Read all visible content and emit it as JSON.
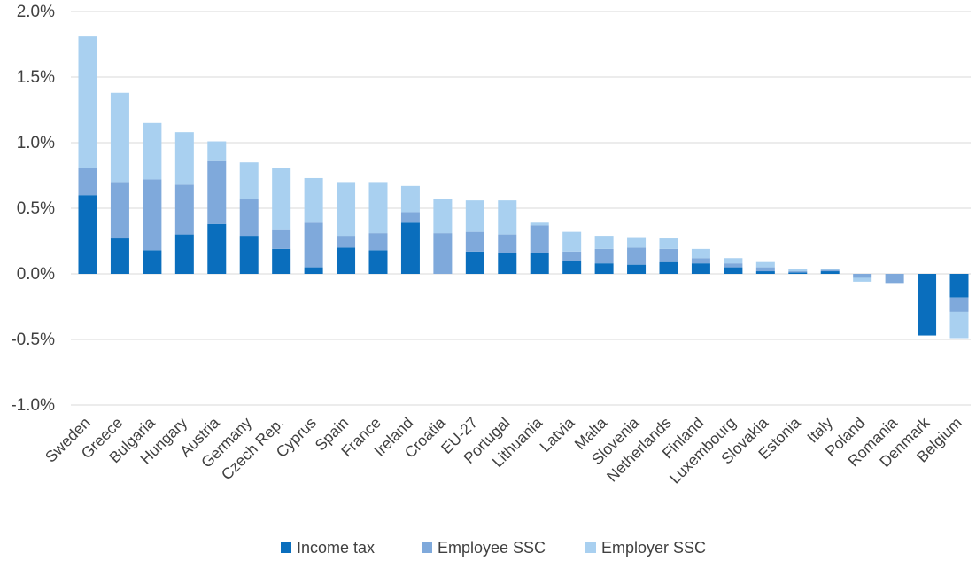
{
  "chart_data": {
    "type": "bar",
    "stacked": true,
    "title": "",
    "xlabel": "",
    "ylabel": "",
    "ylim": [
      -1.0,
      2.0
    ],
    "yticks": [
      -1.0,
      -0.5,
      0.0,
      0.5,
      1.0,
      1.5,
      2.0
    ],
    "ytick_labels": [
      "-1.0%",
      "-0.5%",
      "0.0%",
      "0.5%",
      "1.0%",
      "1.5%",
      "2.0%"
    ],
    "grid": "horizontal",
    "legend_position": "bottom",
    "categories": [
      "Sweden",
      "Greece",
      "Bulgaria",
      "Hungary",
      "Austria",
      "Germany",
      "Czech Rep.",
      "Cyprus",
      "Spain",
      "France",
      "Ireland",
      "Croatia",
      "EU-27",
      "Portugal",
      "Lithuania",
      "Latvia",
      "Malta",
      "Slovenia",
      "Netherlands",
      "Finland",
      "Luxembourg",
      "Slovakia",
      "Estonia",
      "Italy",
      "Poland",
      "Romania",
      "Denmark",
      "Belgium"
    ],
    "series": [
      {
        "name": "Income tax",
        "color": "#0A6EBD",
        "values": [
          0.6,
          0.27,
          0.18,
          0.3,
          0.38,
          0.29,
          0.19,
          0.05,
          0.2,
          0.18,
          0.39,
          0.0,
          0.17,
          0.16,
          0.16,
          0.1,
          0.08,
          0.07,
          0.09,
          0.08,
          0.05,
          0.02,
          0.01,
          0.02,
          0.0,
          0.0,
          -0.47,
          -0.18
        ]
      },
      {
        "name": "Employee SSC",
        "color": "#7FA9DB",
        "values": [
          0.21,
          0.43,
          0.54,
          0.38,
          0.48,
          0.28,
          0.15,
          0.34,
          0.09,
          0.13,
          0.08,
          0.31,
          0.15,
          0.14,
          0.21,
          0.07,
          0.11,
          0.13,
          0.1,
          0.04,
          0.03,
          0.03,
          0.01,
          0.01,
          -0.03,
          -0.07,
          0.0,
          -0.11
        ]
      },
      {
        "name": "Employer SSC",
        "color": "#A9D0F0",
        "values": [
          1.0,
          0.68,
          0.43,
          0.4,
          0.15,
          0.28,
          0.47,
          0.34,
          0.41,
          0.39,
          0.2,
          0.26,
          0.24,
          0.26,
          0.02,
          0.15,
          0.1,
          0.08,
          0.08,
          0.07,
          0.04,
          0.04,
          0.02,
          0.01,
          -0.03,
          0.0,
          0.0,
          -0.2
        ]
      }
    ]
  }
}
